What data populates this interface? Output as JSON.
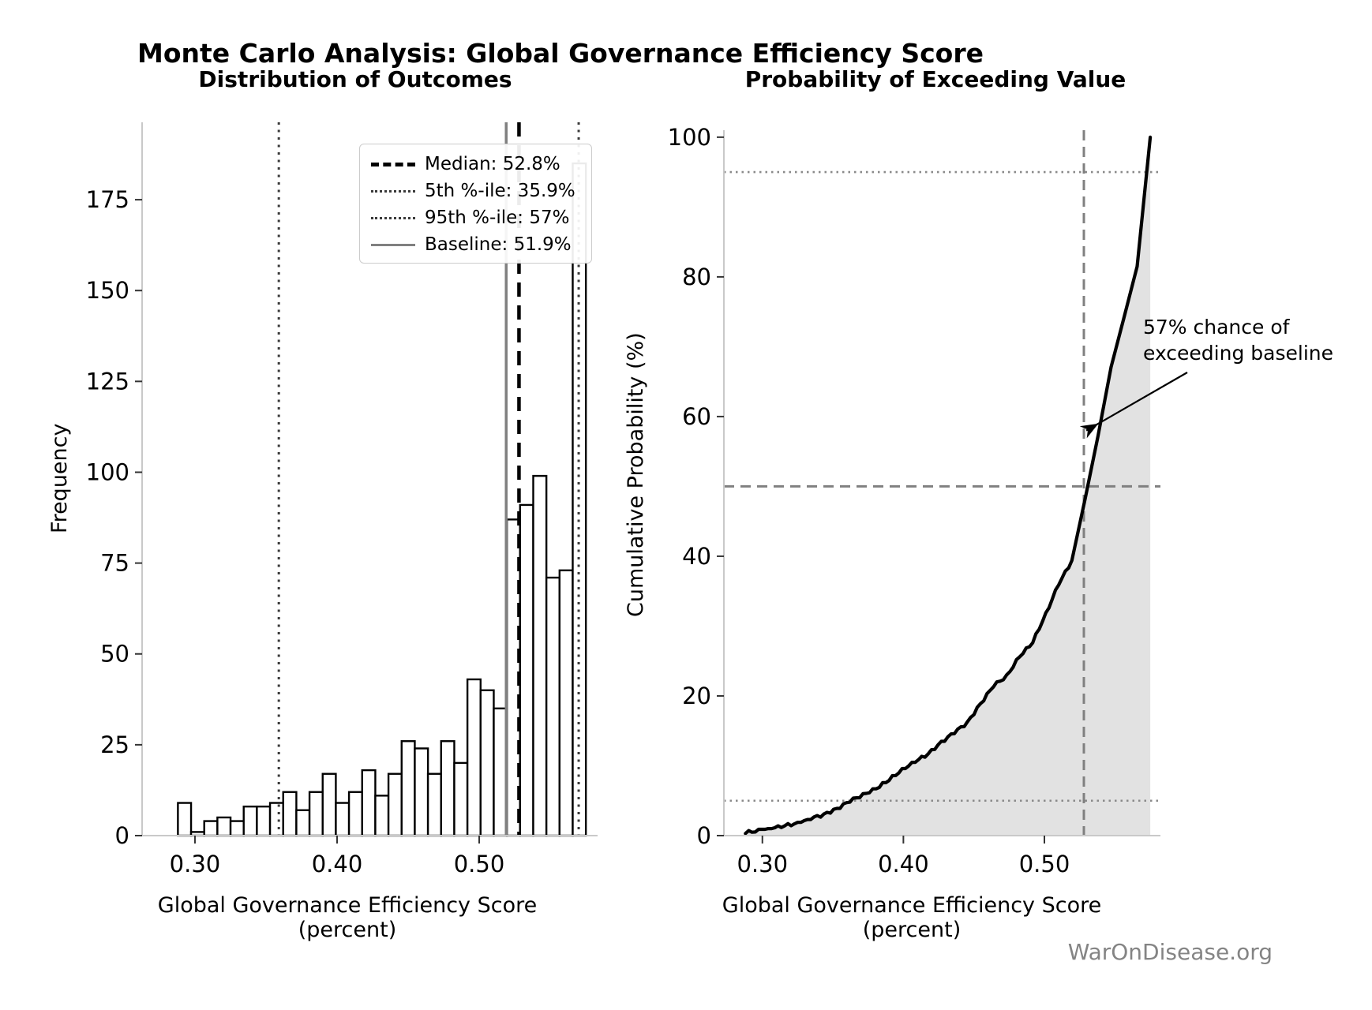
{
  "figure": {
    "title": "Monte Carlo Analysis: Global Governance Efficiency Score",
    "source": "WarOnDisease.org"
  },
  "colors": {
    "background": "#ffffff",
    "bar_fill": "#ffffff",
    "bar_edge": "#000000",
    "curve": "#000000",
    "cdf_fill": "#e2e2e2",
    "spine": "#c9c9c9",
    "tick": "#333333",
    "text": "#000000",
    "muted_text": "#848484",
    "baseline_line": "#808080",
    "percentile_line": "#3a3a3a",
    "gray_dashed": "#808080"
  },
  "chart_data": [
    {
      "type": "bar",
      "subtype": "histogram",
      "title": "Distribution of Outcomes",
      "xlabel": "Global Governance Efficiency Score (percent)",
      "ylabel": "Frequency",
      "xlim": [
        0.2628,
        0.5833
      ],
      "ylim": [
        0,
        196.3
      ],
      "grid": false,
      "x_tick_values": [
        0.3,
        0.4,
        0.5
      ],
      "x_tick_labels": [
        "0.30",
        "0.40",
        "0.50"
      ],
      "y_tick_values": [
        0,
        25,
        50,
        75,
        100,
        125,
        150,
        175
      ],
      "y_tick_labels": [
        "0",
        "25",
        "50",
        "75",
        "100",
        "125",
        "150",
        "175"
      ],
      "bins": {
        "start": 0.288,
        "width": 0.00926,
        "count": 31
      },
      "values": [
        9,
        1,
        4,
        5,
        4,
        8,
        8,
        9,
        12,
        7,
        12,
        17,
        9,
        12,
        18,
        11,
        17,
        26,
        24,
        17,
        26,
        20,
        43,
        40,
        35,
        87,
        91,
        99,
        71,
        73,
        185
      ],
      "ref_lines": [
        {
          "name": "median",
          "value": 0.528,
          "style": "dashed-black",
          "label": "Median: 52.8%"
        },
        {
          "name": "p5",
          "value": 0.359,
          "style": "dotted-dark",
          "label": "5th %-ile: 35.9%"
        },
        {
          "name": "p95",
          "value": 0.57,
          "style": "dotted-dark",
          "label": "95th %-ile: 57%"
        },
        {
          "name": "baseline",
          "value": 0.519,
          "style": "solid-gray",
          "label": "Baseline: 51.9%"
        }
      ],
      "legend": [
        {
          "label": "Median: 52.8%",
          "style": "dashed-black"
        },
        {
          "label": "5th %-ile: 35.9%",
          "style": "dotted-dark"
        },
        {
          "label": "95th %-ile: 57%",
          "style": "dotted-dark"
        },
        {
          "label": "Baseline: 51.9%",
          "style": "solid-gray"
        }
      ],
      "legend_position": "upper right"
    },
    {
      "type": "line",
      "subtype": "cumulative-probability",
      "title": "Probability of Exceeding Value",
      "xlabel": "Global Governance Efficiency Score (percent)",
      "ylabel": "Cumulative Probability (%)",
      "xlim": [
        0.2727,
        0.5823
      ],
      "ylim": [
        0,
        101
      ],
      "grid": false,
      "x_tick_values": [
        0.3,
        0.4,
        0.5
      ],
      "x_tick_labels": [
        "0.30",
        "0.40",
        "0.50"
      ],
      "y_tick_values": [
        0,
        20,
        40,
        60,
        80,
        100
      ],
      "y_tick_labels": [
        "0",
        "20",
        "40",
        "60",
        "80",
        "100"
      ],
      "fill_under_curve": true,
      "x": [
        0.288,
        0.2973,
        0.3065,
        0.3158,
        0.325,
        0.3343,
        0.3436,
        0.3528,
        0.3621,
        0.3713,
        0.3806,
        0.3899,
        0.3991,
        0.4084,
        0.4176,
        0.4269,
        0.4362,
        0.4454,
        0.4547,
        0.4639,
        0.4732,
        0.4825,
        0.4917,
        0.501,
        0.5102,
        0.5195,
        0.5288,
        0.538,
        0.5473,
        0.5565,
        0.5658,
        0.5751
      ],
      "y": [
        0.3,
        0.9,
        1.0,
        1.4,
        1.9,
        2.3,
        3.1,
        3.9,
        4.8,
        6.0,
        6.7,
        7.9,
        9.6,
        10.5,
        11.7,
        13.5,
        14.6,
        16.3,
        18.9,
        21.3,
        23.0,
        25.6,
        27.6,
        31.9,
        35.9,
        39.4,
        48.1,
        57.2,
        67.1,
        74.2,
        81.5,
        100.0
      ],
      "h_ref_lines": [
        {
          "name": "p95-level",
          "value": 95,
          "style": "dotted-gray"
        },
        {
          "name": "median-level",
          "value": 50,
          "style": "dashed-gray"
        },
        {
          "name": "p5-level",
          "value": 5,
          "style": "dotted-gray"
        }
      ],
      "v_ref_lines": [
        {
          "name": "median-score",
          "value": 0.528,
          "style": "dashed-gray"
        }
      ],
      "annotation": {
        "lines": [
          "57% chance of",
          "exceeding baseline"
        ],
        "target": {
          "x": 0.5275,
          "y": 58
        }
      }
    }
  ]
}
